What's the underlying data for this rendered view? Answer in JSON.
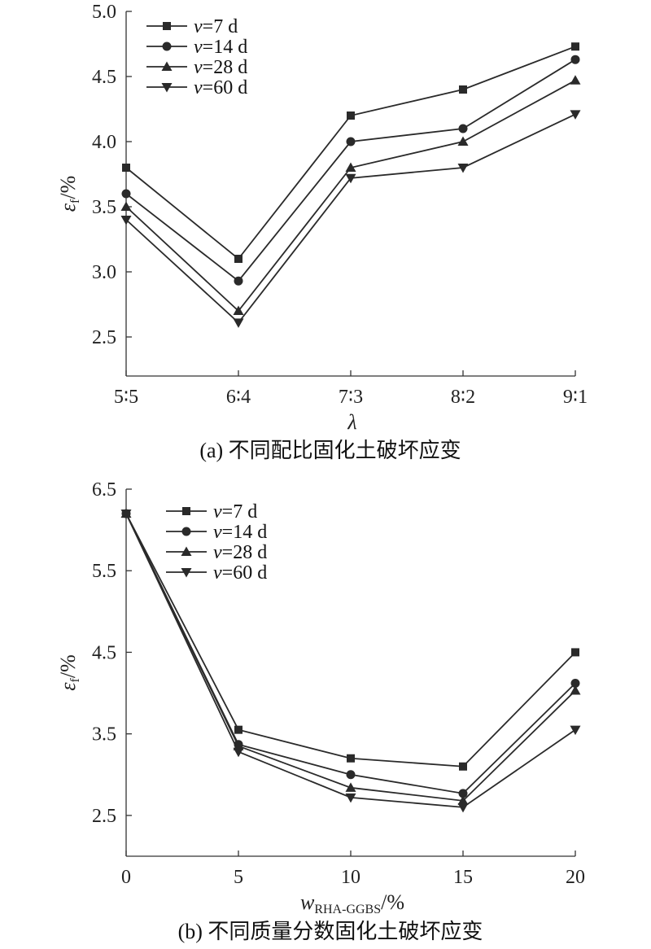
{
  "chart_data": [
    {
      "type": "line",
      "caption": "(a) 不同配比固化土破坏应变",
      "xlabel": "λ",
      "ylabel_main": "ε",
      "ylabel_sub": "f",
      "ylabel_unit": "/%",
      "categories": [
        "5∶5",
        "6∶4",
        "7∶3",
        "8∶2",
        "9∶1"
      ],
      "ylim": [
        2.2,
        5.0
      ],
      "yticks": [
        2.5,
        3.0,
        3.5,
        4.0,
        4.5,
        5.0
      ],
      "ytick_labels": [
        "2.5",
        "3.0",
        "3.5",
        "4.0",
        "4.5",
        "5.0"
      ],
      "legend_position": "top-left",
      "series": [
        {
          "name": "v=7 d",
          "var": "v",
          "label_rest": "=7 d",
          "marker": "square",
          "values": [
            3.8,
            3.1,
            4.2,
            4.4,
            4.73
          ]
        },
        {
          "name": "v=14 d",
          "var": "v",
          "label_rest": "=14 d",
          "marker": "circle",
          "values": [
            3.6,
            2.93,
            4.0,
            4.1,
            4.63
          ]
        },
        {
          "name": "v=28 d",
          "var": "v",
          "label_rest": "=28 d",
          "marker": "triangle-up",
          "values": [
            3.5,
            2.7,
            3.8,
            4.0,
            4.47
          ]
        },
        {
          "name": "v=60 d",
          "var": "v",
          "label_rest": "=60 d",
          "marker": "triangle-down",
          "values": [
            3.4,
            2.61,
            3.72,
            3.8,
            4.21
          ]
        }
      ]
    },
    {
      "type": "line",
      "caption": "(b) 不同质量分数固化土破坏应变",
      "xlabel_main": "w",
      "xlabel_sub": "RHA-GGBS",
      "xlabel_unit": "/%",
      "ylabel_main": "ε",
      "ylabel_sub": "f",
      "ylabel_unit": "/%",
      "x": [
        0,
        5,
        10,
        15,
        20
      ],
      "xtick_labels": [
        "0",
        "5",
        "10",
        "15",
        "20"
      ],
      "ylim": [
        2.0,
        6.5
      ],
      "yticks": [
        2.5,
        3.5,
        4.5,
        5.5,
        6.5
      ],
      "ytick_labels": [
        "2.5",
        "3.5",
        "4.5",
        "5.5",
        "6.5"
      ],
      "legend_position": "top-left",
      "series": [
        {
          "name": "v=7 d",
          "var": "v",
          "label_rest": "=7 d",
          "marker": "square",
          "values": [
            6.2,
            3.55,
            3.2,
            3.1,
            4.5
          ]
        },
        {
          "name": "v=14 d",
          "var": "v",
          "label_rest": "=14 d",
          "marker": "circle",
          "values": [
            6.2,
            3.37,
            3.0,
            2.77,
            4.12
          ]
        },
        {
          "name": "v=28 d",
          "var": "v",
          "label_rest": "=28 d",
          "marker": "triangle-up",
          "values": [
            6.2,
            3.35,
            2.84,
            2.68,
            4.03
          ]
        },
        {
          "name": "v=60 d",
          "var": "v",
          "label_rest": "=60 d",
          "marker": "triangle-down",
          "values": [
            6.2,
            3.28,
            2.72,
            2.6,
            3.55
          ]
        }
      ]
    }
  ]
}
